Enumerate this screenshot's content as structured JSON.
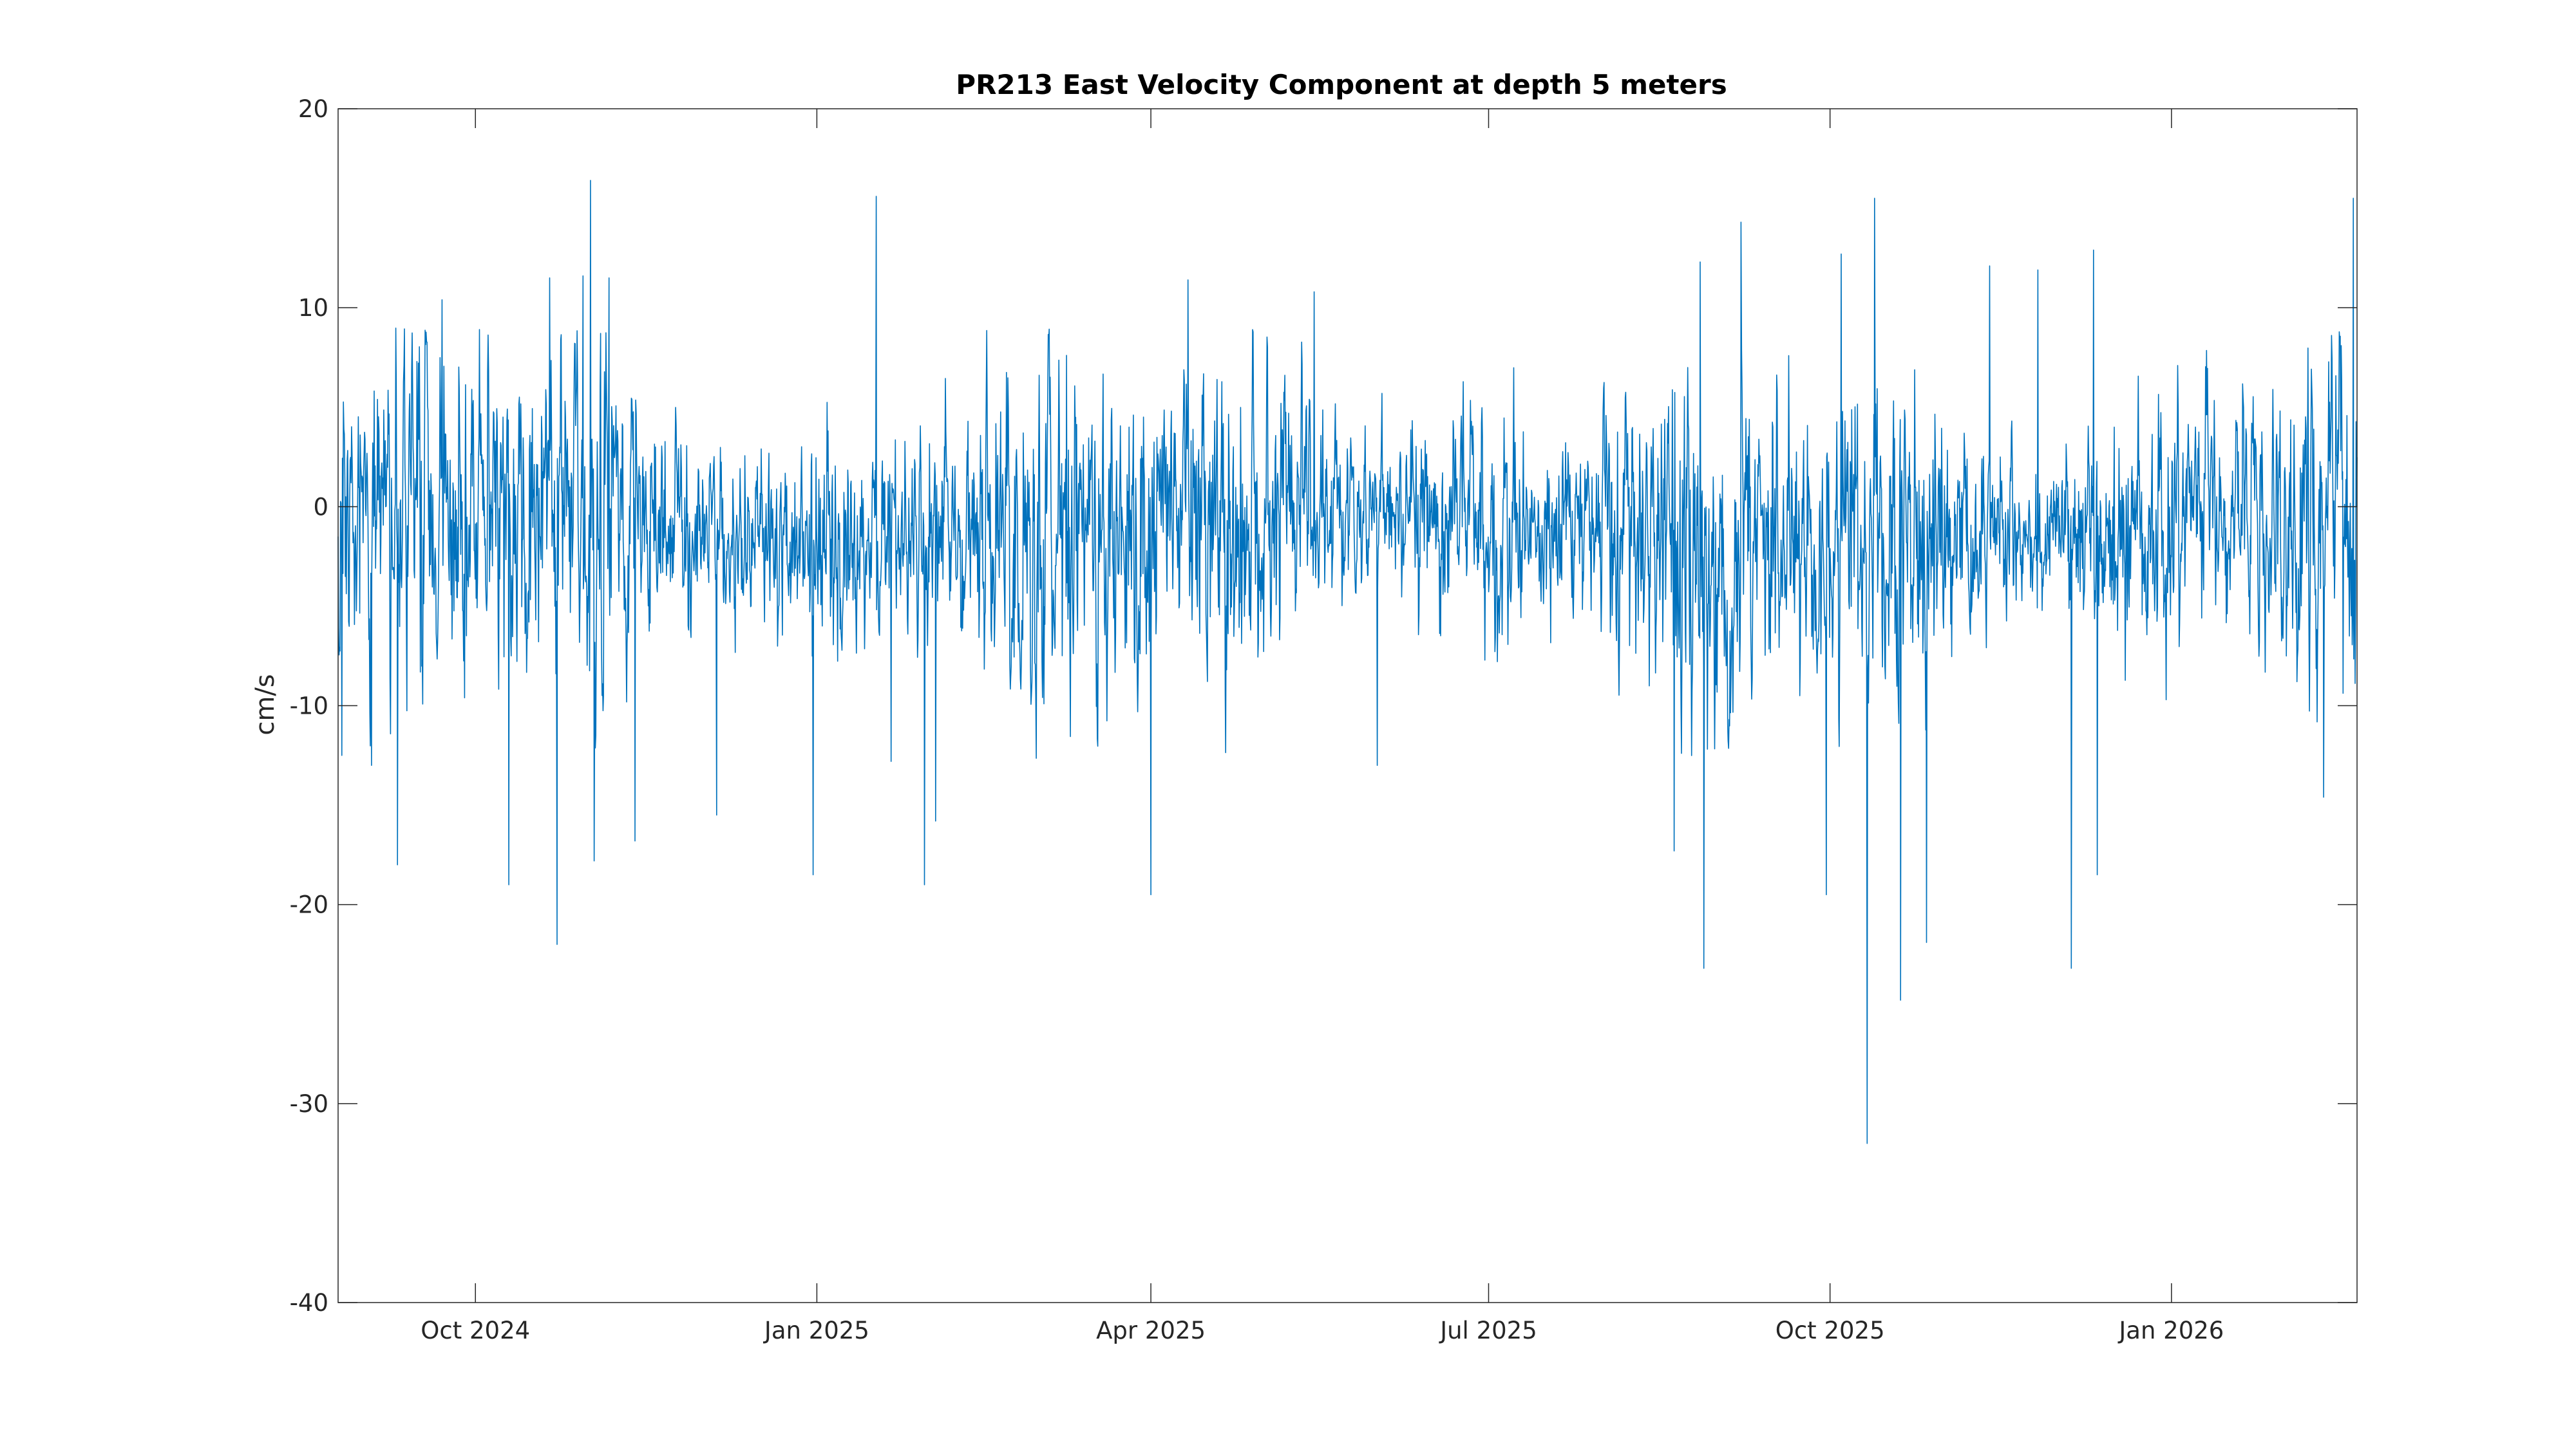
{
  "chart_data": {
    "type": "line",
    "title": "PR213 East Velocity Component at depth 5 meters",
    "xlabel": "",
    "ylabel": "cm/s",
    "x_range": [
      "2024-08-25",
      "2026-02-20"
    ],
    "ylim": [
      -40,
      20
    ],
    "y_ticks": [
      20,
      10,
      0,
      -10,
      -20,
      -30,
      -40
    ],
    "x_ticks": [
      {
        "date": "2024-10-01",
        "label": "Oct 2024"
      },
      {
        "date": "2025-01-01",
        "label": "Jan 2025"
      },
      {
        "date": "2025-04-01",
        "label": "Apr 2025"
      },
      {
        "date": "2025-07-01",
        "label": "Jul 2025"
      },
      {
        "date": "2025-10-01",
        "label": "Oct 2025"
      },
      {
        "date": "2026-01-01",
        "label": "Jan 2026"
      }
    ],
    "grid": false,
    "legend": "none",
    "series": [
      {
        "color": "#0072BD",
        "description": "hourly velocity time series, mean roughly -1 cm/s, typically within -10 to +8 cm/s",
        "points": [
          {
            "x": "2024-08-26",
            "y": -12.5
          },
          {
            "x": "2024-09-03",
            "y": -13.0
          },
          {
            "x": "2024-09-10",
            "y": -18.0
          },
          {
            "x": "2024-09-22",
            "y": 10.4
          },
          {
            "x": "2024-10-10",
            "y": -19.0
          },
          {
            "x": "2024-10-21",
            "y": 11.5
          },
          {
            "x": "2024-10-23",
            "y": -22.0
          },
          {
            "x": "2024-10-30",
            "y": 11.6
          },
          {
            "x": "2024-11-01",
            "y": 16.4
          },
          {
            "x": "2024-11-02",
            "y": -17.8
          },
          {
            "x": "2024-11-06",
            "y": 11.5
          },
          {
            "x": "2024-11-13",
            "y": -16.8
          },
          {
            "x": "2024-12-05",
            "y": -15.5
          },
          {
            "x": "2024-12-31",
            "y": -18.5
          },
          {
            "x": "2025-01-17",
            "y": 15.6
          },
          {
            "x": "2025-01-21",
            "y": -12.8
          },
          {
            "x": "2025-01-30",
            "y": -19.0
          },
          {
            "x": "2025-02-02",
            "y": -15.8
          },
          {
            "x": "2025-04-01",
            "y": -19.5
          },
          {
            "x": "2025-04-11",
            "y": 11.4
          },
          {
            "x": "2025-05-15",
            "y": 10.8
          },
          {
            "x": "2025-06-01",
            "y": -13.0
          },
          {
            "x": "2025-08-20",
            "y": -17.3
          },
          {
            "x": "2025-08-27",
            "y": 12.3
          },
          {
            "x": "2025-08-28",
            "y": -23.2
          },
          {
            "x": "2025-09-07",
            "y": 14.3
          },
          {
            "x": "2025-09-30",
            "y": -19.5
          },
          {
            "x": "2025-10-04",
            "y": 12.7
          },
          {
            "x": "2025-10-11",
            "y": -32.0
          },
          {
            "x": "2025-10-13",
            "y": 15.5
          },
          {
            "x": "2025-10-20",
            "y": -24.8
          },
          {
            "x": "2025-10-27",
            "y": -21.9
          },
          {
            "x": "2025-11-13",
            "y": 12.1
          },
          {
            "x": "2025-11-26",
            "y": 11.9
          },
          {
            "x": "2025-12-05",
            "y": -23.2
          },
          {
            "x": "2025-12-11",
            "y": 12.9
          },
          {
            "x": "2025-12-12",
            "y": -18.5
          },
          {
            "x": "2026-02-11",
            "y": -14.6
          },
          {
            "x": "2026-02-19",
            "y": 15.5
          }
        ]
      }
    ]
  }
}
